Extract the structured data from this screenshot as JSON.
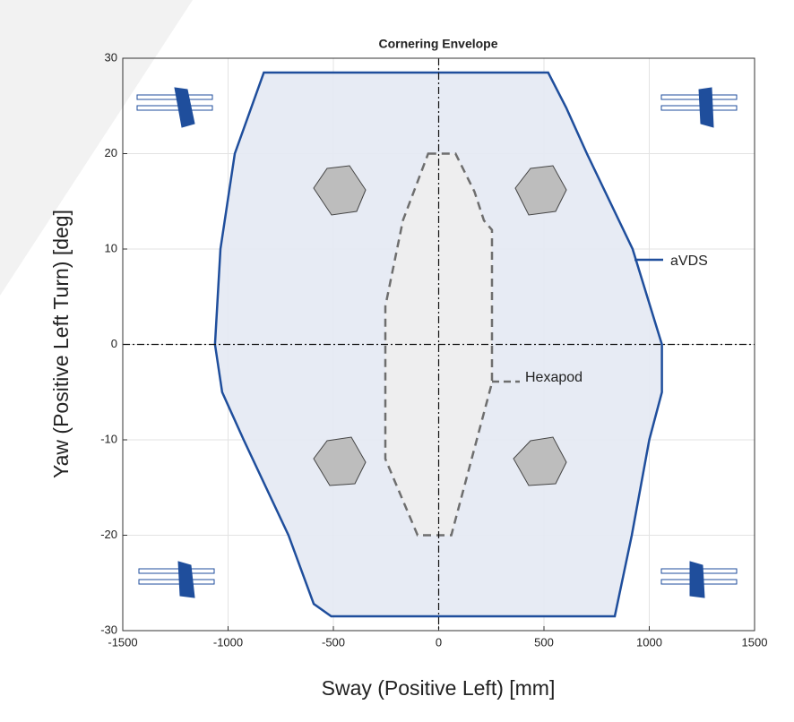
{
  "chart_data": {
    "type": "area",
    "title": "Cornering Envelope",
    "xlabel": "Sway (Positive Left) [mm]",
    "ylabel": "Yaw (Positive Left Turn) [deg]",
    "xlim": [
      -1500,
      1500
    ],
    "ylim": [
      -30,
      30
    ],
    "xticks": [
      -1500,
      -1000,
      -500,
      0,
      500,
      1000,
      1500
    ],
    "yticks": [
      -30,
      -20,
      -10,
      0,
      10,
      20,
      30
    ],
    "grid": true,
    "series": [
      {
        "name": "aVDS",
        "color": "#1f4e9c",
        "fill": "#e4e9f3",
        "dash": false,
        "x": [
          -830,
          520,
          606,
          704,
          921,
          1060,
          1060,
          1000,
          917,
          836,
          -510,
          -593,
          -713,
          -926,
          -1028,
          -1062,
          -1036,
          -968,
          -830
        ],
        "values": [
          28.5,
          28.5,
          24.8,
          20,
          10,
          0,
          -5,
          -10,
          -20,
          -28.5,
          -28.5,
          -27.2,
          -20,
          -10,
          -5,
          0,
          10,
          20,
          28.5
        ]
      },
      {
        "name": "Hexapod",
        "color": "#6e6e6e",
        "fill": "#eeeeee",
        "dash": true,
        "x": [
          -50,
          80,
          170,
          215,
          253,
          253,
          60,
          -100,
          -253,
          -253,
          -170,
          -50
        ],
        "values": [
          20,
          20,
          16,
          13,
          12,
          -4,
          -20,
          -20,
          -12,
          4,
          13,
          20
        ]
      }
    ]
  }
}
